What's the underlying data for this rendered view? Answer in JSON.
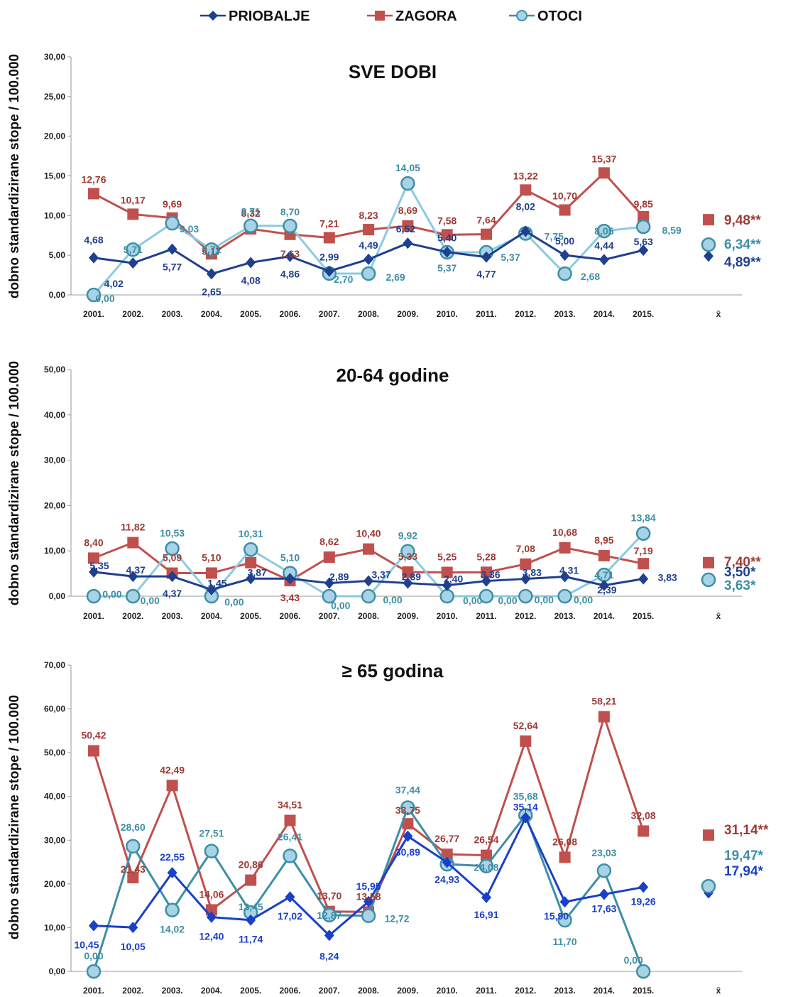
{
  "legend": [
    {
      "name": "PRIOBALJE",
      "color": "#1f3f8f"
    },
    {
      "name": "ZAGORA",
      "color": "#c0504d"
    },
    {
      "name": "OTOCI",
      "color": "#6aaec8"
    }
  ],
  "colors": {
    "priobalje": "#1f3f8f",
    "priobalje_dark": "#1f3f8f",
    "priobalje_bright": "#1a3fc8",
    "zagora": "#c0504d",
    "zagora_label": "#9e3a34",
    "otoci_line": "#8ccbe0",
    "otoci_line_dark": "#3d8fa6",
    "otoci_fill": "#a8d3e6",
    "otoci_label": "#3d8fa6"
  },
  "chart_data": [
    {
      "type": "line",
      "title": "SVE DOBI",
      "ylabel": "dobno standardizirane stope / 100.000",
      "ylim": [
        0,
        30
      ],
      "yticks": [
        "0,00",
        "5,00",
        "10,00",
        "15,00",
        "20,00",
        "25,00",
        "30,00"
      ],
      "categories": [
        "2001.",
        "2002.",
        "2003.",
        "2004.",
        "2005.",
        "2006.",
        "2007.",
        "2008.",
        "2009.",
        "2010.",
        "2011.",
        "2012.",
        "2013.",
        "2014.",
        "2015."
      ],
      "mean_label": "x̄",
      "series": [
        {
          "name": "PRIOBALJE",
          "values": [
            4.68,
            4.02,
            5.77,
            2.65,
            4.08,
            4.86,
            2.99,
            4.49,
            6.52,
            5.4,
            4.77,
            8.02,
            5.0,
            4.44,
            5.63
          ],
          "labels": [
            "4,68",
            "4,02",
            "5,77",
            "2,65",
            "4,08",
            "4,86",
            "2,99",
            "4,49",
            "6,52",
            "5,40",
            "4,77",
            "8,02",
            "5,00",
            "4,44",
            "5,63"
          ],
          "mean": 4.89,
          "mean_label": "4,89**"
        },
        {
          "name": "ZAGORA",
          "values": [
            12.76,
            10.17,
            9.69,
            5.17,
            8.32,
            7.63,
            7.21,
            8.23,
            8.69,
            7.58,
            7.64,
            13.22,
            10.7,
            15.37,
            9.85
          ],
          "labels": [
            "12,76",
            "10,17",
            "9,69",
            "5,17",
            "8,32",
            "7,63",
            "7,21",
            "8,23",
            "8,69",
            "7,58",
            "7,64",
            "13,22",
            "10,70",
            "15,37",
            "9,85"
          ],
          "mean": 9.48,
          "mean_label": "9,48**"
        },
        {
          "name": "OTOCI",
          "values": [
            0.0,
            5.71,
            9.03,
            5.71,
            8.71,
            8.7,
            2.7,
            2.69,
            14.05,
            5.37,
            5.37,
            7.75,
            2.68,
            8.05,
            8.59
          ],
          "labels": [
            "0,00",
            "5,71",
            "9,03",
            "5,71",
            "8,71",
            "8,70",
            "2,70",
            "2,69",
            "14,05",
            "5,37",
            "5,37",
            "7,75",
            "2,68",
            "8,05",
            "8,59"
          ],
          "mean": 6.34,
          "mean_label": "6,34**"
        }
      ]
    },
    {
      "type": "line",
      "title": "20-64 godine",
      "ylabel": "dobno standardizirane stope / 100.000",
      "ylim": [
        0,
        50
      ],
      "yticks": [
        "0,00",
        "10,00",
        "20,00",
        "30,00",
        "40,00",
        "50,00"
      ],
      "categories": [
        "2001.",
        "2002.",
        "2003.",
        "2004.",
        "2005.",
        "2006.",
        "2007.",
        "2008.",
        "2009.",
        "2010.",
        "2011.",
        "2012.",
        "2013.",
        "2014.",
        "2015."
      ],
      "mean_label": "x̄",
      "series": [
        {
          "name": "PRIOBALJE",
          "values": [
            5.35,
            4.37,
            4.37,
            1.45,
            3.87,
            3.87,
            2.89,
            3.37,
            2.89,
            2.4,
            3.36,
            3.83,
            4.31,
            2.39,
            3.83
          ],
          "labels": [
            "5,35",
            "4,37",
            "4,37",
            "1,45",
            "3,87",
            "",
            "2,89",
            "3,37",
            "2,89",
            "2,40",
            "3,36",
            "3,83",
            "4,31",
            "2,39",
            "3,83"
          ],
          "mean": 3.5,
          "mean_label": "3,50*"
        },
        {
          "name": "ZAGORA",
          "values": [
            8.4,
            11.82,
            5.09,
            5.1,
            7.4,
            3.43,
            8.62,
            10.4,
            5.33,
            5.25,
            5.28,
            7.08,
            10.68,
            8.95,
            7.19
          ],
          "labels": [
            "8,40",
            "11,82",
            "5,09",
            "5,10",
            "",
            "3,43",
            "8,62",
            "10,40",
            "5,33",
            "5,25",
            "5,28",
            "7,08",
            "10,68",
            "8,95",
            "7,19"
          ],
          "mean": 7.4,
          "mean_label": "7,40**"
        },
        {
          "name": "OTOCI",
          "values": [
            0.0,
            0.0,
            10.53,
            0.0,
            10.31,
            5.1,
            0.0,
            0.0,
            9.92,
            0.0,
            0.0,
            0.0,
            0.0,
            4.71,
            13.84
          ],
          "labels": [
            "0,00",
            "0,00",
            "10,53",
            "0,00",
            "10,31",
            "5,10",
            "0,00",
            "0,00",
            "9,92",
            "0,00",
            "0,00",
            "0,00",
            "0,00",
            "4,71",
            "13,84"
          ],
          "mean": 3.63,
          "mean_label": "3,63*"
        }
      ]
    },
    {
      "type": "line",
      "title": "≥ 65 godina",
      "ylabel": "dobno standardizirane stope / 100.000",
      "ylim": [
        0,
        70
      ],
      "yticks": [
        "0,00",
        "10,00",
        "20,00",
        "30,00",
        "40,00",
        "50,00",
        "60,00",
        "70,00"
      ],
      "categories": [
        "2001.",
        "2002.",
        "2003.",
        "2004.",
        "2005.",
        "2006.",
        "2007.",
        "2008.",
        "2009.",
        "2010.",
        "2011.",
        "2012.",
        "2013.",
        "2014.",
        "2015."
      ],
      "mean_label": "x̄",
      "series": [
        {
          "name": "PRIOBALJE",
          "values": [
            10.45,
            10.05,
            22.55,
            12.4,
            11.74,
            17.02,
            8.24,
            15.95,
            30.89,
            24.93,
            16.91,
            35.14,
            15.9,
            17.63,
            19.26
          ],
          "labels": [
            "10,45",
            "10,05",
            "22,55",
            "12,40",
            "11,74",
            "17,02",
            "8,24",
            "15,95",
            "30,89",
            "24,93",
            "16,91",
            "35,14",
            "15,90",
            "17,63",
            "19,26"
          ],
          "mean": 17.94,
          "mean_label": "17,94*"
        },
        {
          "name": "ZAGORA",
          "values": [
            50.42,
            21.43,
            42.49,
            14.06,
            20.86,
            34.51,
            13.7,
            13.58,
            33.75,
            26.77,
            26.54,
            52.64,
            26.08,
            58.21,
            32.08
          ],
          "labels": [
            "50,42",
            "21,43",
            "42,49",
            "14,06",
            "20,86",
            "34,51",
            "13,70",
            "13,58",
            "33,75",
            "26,77",
            "26,54",
            "52,64",
            "26,08",
            "58,21",
            "32,08"
          ],
          "mean": 31.14,
          "mean_label": "31,14**"
        },
        {
          "name": "OTOCI",
          "values": [
            0.0,
            28.6,
            14.02,
            27.51,
            13.45,
            26.41,
            12.87,
            12.72,
            37.44,
            24.5,
            24.08,
            35.68,
            11.7,
            23.03,
            0.0
          ],
          "labels": [
            "0,00",
            "28,60",
            "14,02",
            "27,51",
            "13,45",
            "26,41",
            "12,87",
            "12,72",
            "37,44",
            "",
            "24,08",
            "35,68",
            "11,70",
            "23,03",
            "0,00"
          ],
          "mean": 19.47,
          "mean_label": "19,47*"
        }
      ]
    }
  ]
}
